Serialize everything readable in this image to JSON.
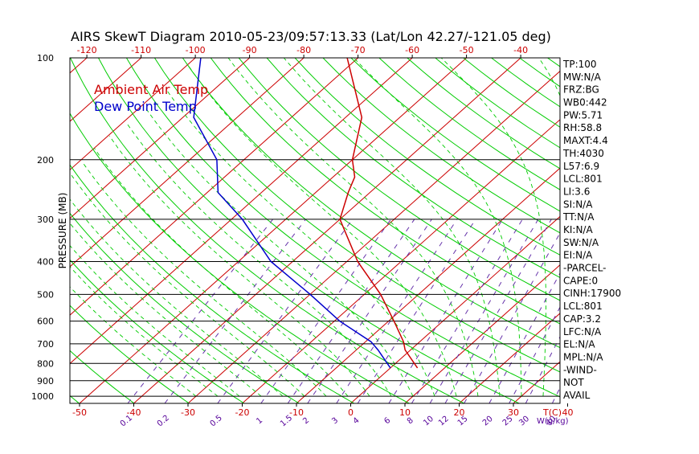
{
  "chart_data": {
    "type": "line",
    "title": "AIRS SkewT Diagram 2010-05-23/09:57:13.33 (Lat/Lon 42.27/-121.05 deg)",
    "ylabel": "PRESSURE (MB)",
    "x_unit_label": "T(C)",
    "mixing_unit_label": "W(g/kg)",
    "log_pressure_axis": true,
    "pressure_range": [
      1050,
      100
    ],
    "temperature_range_bottom": [
      -55,
      40
    ],
    "top_temperature_ticks": [
      "-120",
      "-110",
      "-100",
      "-90",
      "-80",
      "-70",
      "-60",
      "-50",
      "-40"
    ],
    "bottom_temperature_ticks": [
      "-50",
      "-40",
      "-30",
      "-20",
      "-10",
      "0",
      "10",
      "20",
      "30",
      "40"
    ],
    "pressure_ticks": [
      "100",
      "200",
      "300",
      "400",
      "500",
      "600",
      "700",
      "800",
      "900",
      "1000"
    ],
    "mixing_ratio_labels": [
      "0.1",
      "0.2",
      "0.5",
      "1",
      "1.5",
      "2",
      "3",
      "4",
      "6",
      "8",
      "10",
      "12",
      "15",
      "20",
      "25",
      "30",
      "40"
    ],
    "legend": [
      {
        "label": "Ambient Air Temp",
        "color": "#cc0000"
      },
      {
        "label": "Dew Point Temp",
        "color": "#0000cc"
      }
    ],
    "series": [
      {
        "name": "Ambient Air Temp",
        "color": "#cc0000",
        "points": [
          {
            "p": 825,
            "t": 5
          },
          {
            "p": 730,
            "t": -1
          },
          {
            "p": 690,
            "t": -3
          },
          {
            "p": 600,
            "t": -9
          },
          {
            "p": 500,
            "t": -17
          },
          {
            "p": 400,
            "t": -28
          },
          {
            "p": 300,
            "t": -40
          },
          {
            "p": 250,
            "t": -44
          },
          {
            "p": 225,
            "t": -46
          },
          {
            "p": 200,
            "t": -50
          },
          {
            "p": 150,
            "t": -57
          },
          {
            "p": 100,
            "t": -72
          }
        ]
      },
      {
        "name": "Dew Point Temp",
        "color": "#0000cc",
        "points": [
          {
            "p": 825,
            "t": 0
          },
          {
            "p": 730,
            "t": -6
          },
          {
            "p": 690,
            "t": -9
          },
          {
            "p": 600,
            "t": -19
          },
          {
            "p": 500,
            "t": -30
          },
          {
            "p": 400,
            "t": -44
          },
          {
            "p": 300,
            "t": -58
          },
          {
            "p": 250,
            "t": -68
          },
          {
            "p": 200,
            "t": -75
          },
          {
            "p": 150,
            "t": -88
          },
          {
            "p": 100,
            "t": -99
          }
        ]
      }
    ]
  },
  "indices": [
    "TP:100",
    "MW:N/A",
    "FRZ:BG",
    "WB0:442",
    "PW:5.71",
    "RH:58.8",
    "MAXT:4.4",
    "TH:4030",
    "L57:6.9",
    "LCL:801",
    "LI:3.6",
    "SI:N/A",
    "TT:N/A",
    "KI:N/A",
    "SW:N/A",
    "EI:N/A",
    "-PARCEL-",
    "CAPE:0",
    "CINH:17900",
    "LCL:801",
    "CAP:3.2",
    "LFC:N/A",
    "EL:N/A",
    "MPL:N/A",
    "-WIND-",
    "NOT",
    "AVAIL"
  ],
  "colors": {
    "isotherm": "#cc0000",
    "dry_adiabat": "#00cc00",
    "moist_adiabat": "#00cc00",
    "mixing_ratio": "#6633aa",
    "isobar": "#000000"
  }
}
